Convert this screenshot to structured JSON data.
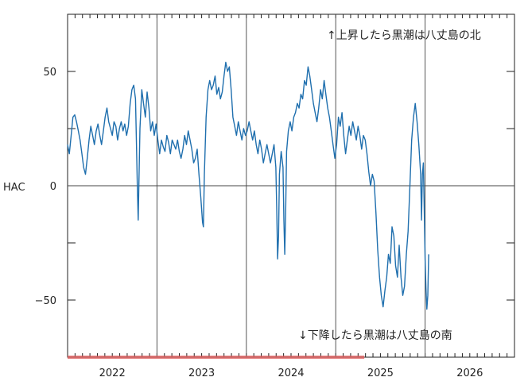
{
  "chart_data": {
    "type": "line",
    "title": "",
    "xlabel": "",
    "ylabel": "HAC",
    "xlim": [
      2021.5,
      2026.5
    ],
    "ylim": [
      -75,
      75
    ],
    "year_ticks": [
      "2022",
      "2023",
      "2024",
      "2025",
      "2026"
    ],
    "y_ticks": [
      50,
      0,
      -50
    ],
    "y_tick_labels": [
      "50",
      "0",
      "−50"
    ],
    "annotations": {
      "upper": "↑上昇したら黒潮は八丈島の北",
      "lower": "↓下降したら黒潮は八丈島の南"
    },
    "colors": {
      "line": "#1f6fae",
      "highlight": "#e06060",
      "grid": "#555555"
    },
    "highlight_range": [
      2021.5,
      2024.82
    ],
    "grid": true,
    "series": [
      {
        "name": "",
        "points": [
          [
            2021.5,
            18
          ],
          [
            2021.52,
            14
          ],
          [
            2021.54,
            22
          ],
          [
            2021.56,
            30
          ],
          [
            2021.58,
            31
          ],
          [
            2021.6,
            28
          ],
          [
            2021.62,
            24
          ],
          [
            2021.64,
            20
          ],
          [
            2021.66,
            14
          ],
          [
            2021.68,
            8
          ],
          [
            2021.7,
            5
          ],
          [
            2021.72,
            12
          ],
          [
            2021.74,
            20
          ],
          [
            2021.76,
            26
          ],
          [
            2021.78,
            22
          ],
          [
            2021.8,
            18
          ],
          [
            2021.82,
            24
          ],
          [
            2021.84,
            27
          ],
          [
            2021.86,
            22
          ],
          [
            2021.88,
            18
          ],
          [
            2021.9,
            24
          ],
          [
            2021.92,
            30
          ],
          [
            2021.94,
            34
          ],
          [
            2021.96,
            28
          ],
          [
            2021.98,
            25
          ],
          [
            2022.0,
            22
          ],
          [
            2022.02,
            28
          ],
          [
            2022.04,
            26
          ],
          [
            2022.06,
            20
          ],
          [
            2022.08,
            25
          ],
          [
            2022.1,
            28
          ],
          [
            2022.12,
            24
          ],
          [
            2022.14,
            27
          ],
          [
            2022.16,
            22
          ],
          [
            2022.18,
            26
          ],
          [
            2022.2,
            36
          ],
          [
            2022.22,
            42
          ],
          [
            2022.24,
            44
          ],
          [
            2022.26,
            38
          ],
          [
            2022.27,
            20
          ],
          [
            2022.28,
            0
          ],
          [
            2022.29,
            -15
          ],
          [
            2022.3,
            5
          ],
          [
            2022.31,
            25
          ],
          [
            2022.33,
            42
          ],
          [
            2022.35,
            36
          ],
          [
            2022.37,
            30
          ],
          [
            2022.39,
            41
          ],
          [
            2022.41,
            34
          ],
          [
            2022.43,
            24
          ],
          [
            2022.45,
            28
          ],
          [
            2022.47,
            22
          ],
          [
            2022.49,
            27
          ],
          [
            2022.51,
            20
          ],
          [
            2022.53,
            14
          ],
          [
            2022.55,
            20
          ],
          [
            2022.57,
            17
          ],
          [
            2022.59,
            15
          ],
          [
            2022.61,
            22
          ],
          [
            2022.63,
            19
          ],
          [
            2022.65,
            14
          ],
          [
            2022.67,
            20
          ],
          [
            2022.69,
            18
          ],
          [
            2022.71,
            16
          ],
          [
            2022.73,
            20
          ],
          [
            2022.75,
            15
          ],
          [
            2022.77,
            12
          ],
          [
            2022.79,
            16
          ],
          [
            2022.81,
            22
          ],
          [
            2022.83,
            18
          ],
          [
            2022.85,
            24
          ],
          [
            2022.87,
            20
          ],
          [
            2022.89,
            16
          ],
          [
            2022.91,
            10
          ],
          [
            2022.93,
            12
          ],
          [
            2022.95,
            16
          ],
          [
            2022.97,
            5
          ],
          [
            2022.99,
            -5
          ],
          [
            2023.01,
            -16
          ],
          [
            2023.02,
            -18
          ],
          [
            2023.03,
            5
          ],
          [
            2023.05,
            30
          ],
          [
            2023.07,
            42
          ],
          [
            2023.09,
            46
          ],
          [
            2023.11,
            42
          ],
          [
            2023.13,
            44
          ],
          [
            2023.15,
            48
          ],
          [
            2023.17,
            40
          ],
          [
            2023.19,
            43
          ],
          [
            2023.21,
            38
          ],
          [
            2023.23,
            41
          ],
          [
            2023.25,
            48
          ],
          [
            2023.27,
            54
          ],
          [
            2023.29,
            50
          ],
          [
            2023.31,
            52
          ],
          [
            2023.33,
            42
          ],
          [
            2023.35,
            30
          ],
          [
            2023.37,
            26
          ],
          [
            2023.39,
            22
          ],
          [
            2023.41,
            28
          ],
          [
            2023.43,
            24
          ],
          [
            2023.45,
            20
          ],
          [
            2023.47,
            25
          ],
          [
            2023.49,
            22
          ],
          [
            2023.51,
            24
          ],
          [
            2023.53,
            28
          ],
          [
            2023.55,
            24
          ],
          [
            2023.57,
            20
          ],
          [
            2023.59,
            24
          ],
          [
            2023.61,
            18
          ],
          [
            2023.63,
            14
          ],
          [
            2023.65,
            20
          ],
          [
            2023.67,
            16
          ],
          [
            2023.69,
            10
          ],
          [
            2023.71,
            14
          ],
          [
            2023.73,
            18
          ],
          [
            2023.75,
            14
          ],
          [
            2023.77,
            10
          ],
          [
            2023.79,
            14
          ],
          [
            2023.81,
            18
          ],
          [
            2023.83,
            8
          ],
          [
            2023.84,
            -10
          ],
          [
            2023.85,
            -32
          ],
          [
            2023.86,
            -22
          ],
          [
            2023.87,
            5
          ],
          [
            2023.89,
            15
          ],
          [
            2023.91,
            8
          ],
          [
            2023.92,
            -15
          ],
          [
            2023.93,
            -30
          ],
          [
            2023.94,
            -10
          ],
          [
            2023.95,
            15
          ],
          [
            2023.97,
            24
          ],
          [
            2023.99,
            28
          ],
          [
            2024.01,
            24
          ],
          [
            2024.03,
            30
          ],
          [
            2024.05,
            32
          ],
          [
            2024.07,
            36
          ],
          [
            2024.09,
            34
          ],
          [
            2024.11,
            40
          ],
          [
            2024.13,
            38
          ],
          [
            2024.15,
            46
          ],
          [
            2024.17,
            44
          ],
          [
            2024.19,
            52
          ],
          [
            2024.21,
            48
          ],
          [
            2024.23,
            42
          ],
          [
            2024.25,
            36
          ],
          [
            2024.27,
            32
          ],
          [
            2024.29,
            28
          ],
          [
            2024.31,
            34
          ],
          [
            2024.33,
            42
          ],
          [
            2024.35,
            38
          ],
          [
            2024.37,
            46
          ],
          [
            2024.39,
            40
          ],
          [
            2024.41,
            34
          ],
          [
            2024.43,
            30
          ],
          [
            2024.45,
            24
          ],
          [
            2024.47,
            18
          ],
          [
            2024.49,
            12
          ],
          [
            2024.51,
            18
          ],
          [
            2024.53,
            30
          ],
          [
            2024.55,
            26
          ],
          [
            2024.57,
            32
          ],
          [
            2024.59,
            22
          ],
          [
            2024.61,
            14
          ],
          [
            2024.63,
            20
          ],
          [
            2024.65,
            26
          ],
          [
            2024.67,
            22
          ],
          [
            2024.69,
            28
          ],
          [
            2024.71,
            24
          ],
          [
            2024.73,
            20
          ],
          [
            2024.75,
            26
          ],
          [
            2024.77,
            22
          ],
          [
            2024.79,
            16
          ],
          [
            2024.81,
            22
          ],
          [
            2024.83,
            20
          ],
          [
            2024.85,
            14
          ],
          [
            2024.87,
            6
          ],
          [
            2024.89,
            0
          ],
          [
            2024.91,
            5
          ],
          [
            2024.93,
            2
          ],
          [
            2024.95,
            -12
          ],
          [
            2024.97,
            -28
          ],
          [
            2024.99,
            -40
          ],
          [
            2025.01,
            -48
          ],
          [
            2025.03,
            -53
          ],
          [
            2025.05,
            -46
          ],
          [
            2025.07,
            -40
          ],
          [
            2025.09,
            -30
          ],
          [
            2025.11,
            -34
          ],
          [
            2025.13,
            -18
          ],
          [
            2025.15,
            -22
          ],
          [
            2025.17,
            -35
          ],
          [
            2025.19,
            -40
          ],
          [
            2025.21,
            -26
          ],
          [
            2025.23,
            -40
          ],
          [
            2025.25,
            -48
          ],
          [
            2025.27,
            -44
          ],
          [
            2025.29,
            -30
          ],
          [
            2025.31,
            -20
          ],
          [
            2025.33,
            0
          ],
          [
            2025.35,
            20
          ],
          [
            2025.37,
            30
          ],
          [
            2025.39,
            36
          ],
          [
            2025.41,
            28
          ],
          [
            2025.43,
            18
          ],
          [
            2025.45,
            5
          ],
          [
            2025.46,
            -15
          ],
          [
            2025.47,
            5
          ],
          [
            2025.48,
            10
          ],
          [
            2025.49,
            -10
          ],
          [
            2025.5,
            -32
          ],
          [
            2025.51,
            -45
          ],
          [
            2025.52,
            -54
          ],
          [
            2025.53,
            -48
          ],
          [
            2025.54,
            -30
          ]
        ]
      }
    ]
  }
}
